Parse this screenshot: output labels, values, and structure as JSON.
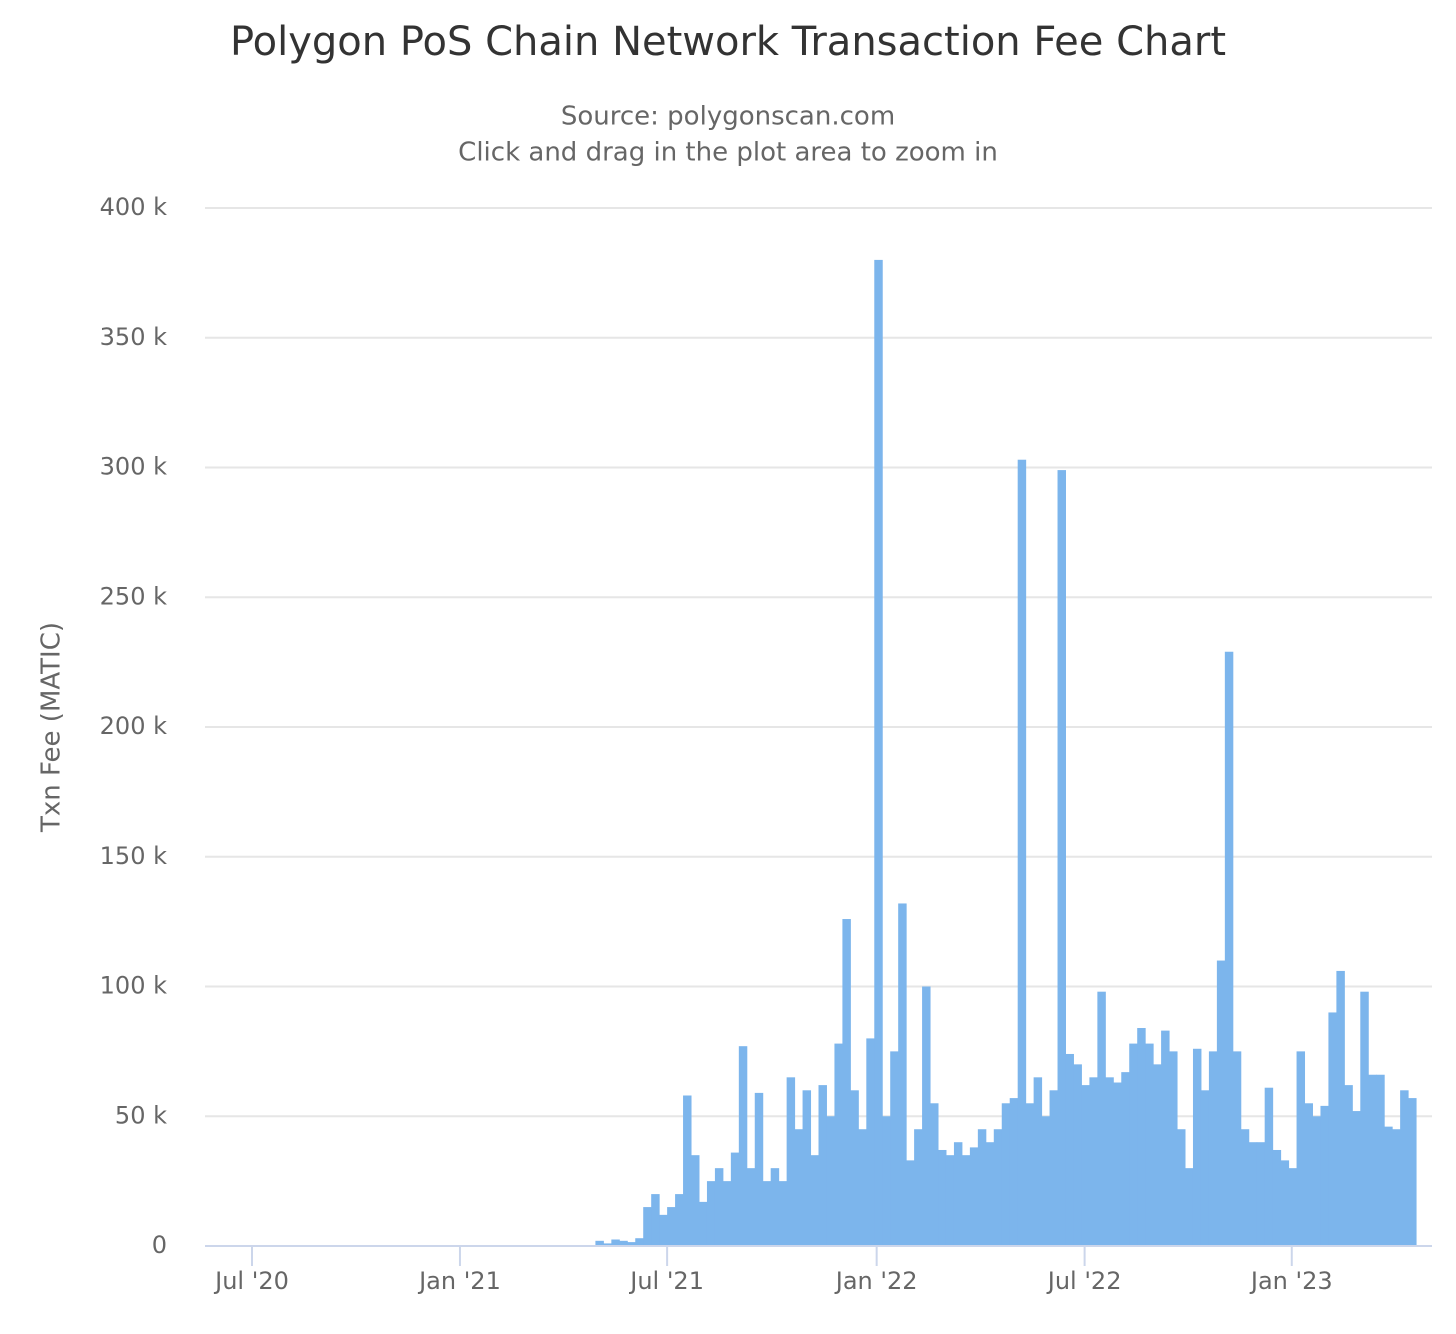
{
  "chart_data": {
    "type": "bar",
    "title": "Polygon PoS Chain Network Transaction Fee Chart",
    "subtitle": [
      "Source: polygonscan.com",
      "Click and drag in the plot area to zoom in"
    ],
    "y_label": "Txn Fee (MATIC)",
    "color": "#7cb5ec",
    "grid": true,
    "categories": [
      null,
      null,
      null,
      null,
      null,
      null,
      null,
      null,
      null,
      null,
      null,
      null,
      null,
      null,
      null,
      null,
      null,
      null,
      null,
      null,
      null,
      null,
      null,
      null,
      null,
      null,
      null,
      null,
      null,
      null,
      null,
      null,
      null,
      null,
      null,
      null,
      null,
      null,
      null,
      null,
      null,
      null,
      null,
      null,
      null,
      null,
      null,
      null,
      null,
      null,
      null,
      null,
      null,
      null,
      null,
      null,
      null,
      null,
      null,
      null,
      null,
      null,
      null,
      null,
      null,
      null,
      null,
      null,
      null,
      null,
      null,
      null,
      null,
      null,
      null,
      null,
      null,
      null,
      null,
      null,
      null,
      null,
      null,
      null,
      null,
      null,
      null,
      null,
      null,
      null,
      null,
      null,
      null,
      null,
      null,
      null,
      null,
      null,
      null,
      null,
      null,
      null,
      null,
      null,
      null,
      null,
      null,
      null,
      null,
      null,
      null,
      null,
      null,
      null,
      null,
      null,
      null,
      null,
      null,
      null,
      null,
      null,
      null,
      null,
      null,
      null,
      null,
      null,
      null,
      null,
      null,
      null,
      null,
      null,
      null,
      null,
      null,
      null,
      null,
      null,
      null,
      null,
      null,
      null,
      null,
      null,
      null,
      null,
      null,
      null,
      null,
      null
    ],
    "values": [
      0,
      0,
      0,
      0,
      0,
      0,
      0,
      0,
      0,
      0,
      0,
      0,
      0,
      0,
      0,
      0,
      0,
      0,
      0,
      0,
      0,
      0,
      0,
      0,
      0,
      0,
      0,
      0,
      0,
      0,
      0,
      0,
      0,
      0,
      0,
      0,
      0,
      0,
      0,
      0,
      0,
      0,
      0,
      0,
      0,
      0,
      0,
      0,
      0,
      2000,
      1000,
      2500,
      2000,
      1500,
      3000,
      15000,
      20000,
      12000,
      15000,
      20000,
      58000,
      35000,
      17000,
      25000,
      30000,
      25000,
      36000,
      77000,
      30000,
      59000,
      25000,
      30000,
      25000,
      65000,
      45000,
      60000,
      35000,
      62000,
      50000,
      78000,
      126000,
      60000,
      45000,
      80000,
      380000,
      50000,
      75000,
      132000,
      33000,
      45000,
      100000,
      55000,
      37000,
      35000,
      40000,
      35000,
      38000,
      45000,
      40000,
      45000,
      55000,
      57000,
      303000,
      55000,
      65000,
      50000,
      60000,
      299000,
      74000,
      70000,
      62000,
      65000,
      98000,
      65000,
      63000,
      67000,
      78000,
      84000,
      78000,
      70000,
      83000,
      75000,
      45000,
      30000,
      76000,
      60000,
      75000,
      110000,
      229000,
      75000,
      45000,
      40000,
      40000,
      61000,
      37000,
      33000,
      30000,
      75000,
      55000,
      50000,
      54000,
      90000,
      106000,
      62000,
      52000,
      98000,
      66000,
      66000,
      46000,
      45000,
      60000,
      57000
    ],
    "xlim": [
      0,
      154
    ],
    "xticks": [
      {
        "value": 5.9,
        "label": "Jul '20"
      },
      {
        "value": 32.0,
        "label": "Jan '21"
      },
      {
        "value": 58.0,
        "label": "Jul '21"
      },
      {
        "value": 84.3,
        "label": "Jan '22"
      },
      {
        "value": 110.4,
        "label": "Jul '22"
      },
      {
        "value": 136.4,
        "label": "Jan '23"
      }
    ],
    "ylim": [
      0,
      400000
    ],
    "yticks": [
      0,
      {
        "value": 50000,
        "label": "50 k"
      },
      {
        "value": 100000,
        "label": "100 k"
      },
      {
        "value": 150000,
        "label": "150 k"
      },
      {
        "value": 200000,
        "label": "200 k"
      },
      {
        "value": 250000,
        "label": "250 k"
      },
      {
        "value": 300000,
        "label": "300 k"
      },
      {
        "value": 350000,
        "label": "350 k"
      },
      {
        "value": 400000,
        "label": "400 k"
      }
    ]
  }
}
